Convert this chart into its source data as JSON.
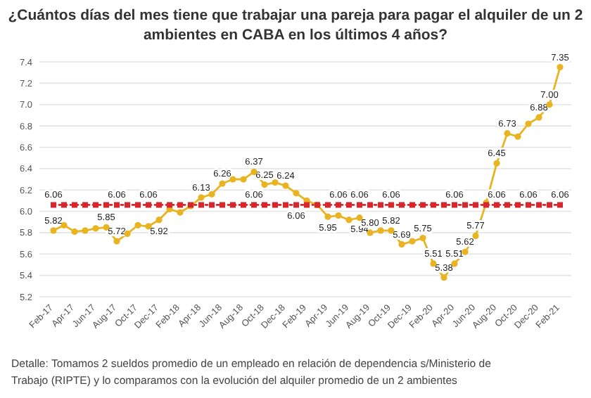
{
  "chart_data": {
    "type": "line",
    "title": "¿Cuántos días del mes tiene que trabajar una pareja para pagar el alquiler de un 2 ambientes en CABA en los últimos 4 años?",
    "categories": [
      "Feb-17",
      null,
      "Apr-17",
      null,
      "Jun-17",
      null,
      "Aug-17",
      null,
      "Oct-17",
      null,
      "Dec-17",
      null,
      "Feb-18",
      null,
      "Apr-18",
      null,
      "Jun-18",
      null,
      "Aug-18",
      null,
      "Oct-18",
      null,
      "Dec-18",
      null,
      "Feb-19",
      null,
      "Apr-19",
      null,
      "Jun-19",
      null,
      "Aug-19",
      null,
      "Oct-19",
      null,
      "Dec-19",
      null,
      "Feb-20",
      null,
      "Apr-20",
      null,
      "Jun-20",
      null,
      "Aug-20",
      null,
      "Oct-20",
      null,
      "Dec-20",
      null,
      "Feb-21"
    ],
    "series": [
      {
        "color": "#e8b422",
        "marker": "circle",
        "line_style": "solid",
        "values": [
          5.82,
          5.87,
          5.81,
          5.82,
          5.84,
          5.85,
          5.72,
          5.79,
          5.87,
          5.86,
          5.92,
          6.02,
          5.99,
          6.05,
          6.13,
          6.16,
          6.26,
          6.3,
          6.3,
          6.37,
          6.25,
          6.27,
          6.24,
          6.17,
          6.1,
          6.06,
          5.95,
          5.96,
          5.92,
          5.94,
          5.8,
          5.82,
          5.82,
          5.69,
          5.72,
          5.75,
          5.51,
          5.38,
          5.51,
          5.62,
          5.77,
          6.08,
          6.45,
          6.73,
          6.7,
          6.82,
          6.88,
          7.0,
          7.35
        ],
        "value_labels": [
          "5.82",
          null,
          null,
          null,
          null,
          "5.85",
          "5.72",
          null,
          null,
          null,
          "5.92",
          null,
          null,
          null,
          "6.13",
          null,
          "6.26",
          null,
          null,
          "6.37",
          "6.25",
          null,
          "6.24",
          null,
          null,
          null,
          "5.95",
          null,
          null,
          "5.94",
          "5.80",
          null,
          "5.82",
          "5.69",
          null,
          "5.75",
          "5.51",
          "5.38",
          "5.51",
          "5.62",
          "5.77",
          null,
          "6.45",
          "6.73",
          null,
          null,
          "6.88",
          "7.00",
          "7.35"
        ]
      },
      {
        "color": "#d7262e",
        "marker": "square",
        "line_style": "dotted",
        "values": [
          6.06,
          6.06,
          6.06,
          6.06,
          6.06,
          6.06,
          6.06,
          6.06,
          6.06,
          6.06,
          6.06,
          6.06,
          6.06,
          6.06,
          6.06,
          6.06,
          6.06,
          6.06,
          6.06,
          6.06,
          6.06,
          6.06,
          6.06,
          6.06,
          6.06,
          6.06,
          6.06,
          6.06,
          6.06,
          6.06,
          6.06,
          6.06,
          6.06,
          6.06,
          6.06,
          6.06,
          6.06,
          6.06,
          6.06,
          6.06,
          6.06,
          6.06,
          6.06,
          6.06,
          6.06,
          6.06,
          6.06,
          6.06,
          6.06
        ],
        "value_labels": [
          "6.06",
          null,
          null,
          null,
          null,
          null,
          "6.06",
          null,
          null,
          "6.06",
          null,
          null,
          null,
          null,
          null,
          null,
          null,
          null,
          null,
          "6.06",
          null,
          null,
          null,
          "6.06",
          null,
          null,
          null,
          "6.06",
          null,
          "6.06",
          null,
          null,
          "6.06",
          null,
          null,
          null,
          null,
          null,
          "6.06",
          null,
          null,
          null,
          "6.06",
          null,
          null,
          "6.06",
          null,
          null,
          "6.06"
        ]
      }
    ],
    "ylim": [
      5.2,
      7.4
    ],
    "yticks": [
      {
        "value": 5.2,
        "label": "5.2"
      },
      {
        "value": 5.4,
        "label": "5.4"
      },
      {
        "value": 5.6,
        "label": "5.6"
      },
      {
        "value": 5.8,
        "label": "5.8"
      },
      {
        "value": 6.0,
        "label": "6.0"
      },
      {
        "value": 6.2,
        "label": "6.2"
      },
      {
        "value": 6.4,
        "label": "6.4"
      },
      {
        "value": 6.6,
        "label": "6.6"
      },
      {
        "value": 6.8,
        "label": "6.8"
      },
      {
        "value": 7.0,
        "label": "7.0"
      },
      {
        "value": 7.2,
        "label": "7.2"
      },
      {
        "value": 7.4,
        "label": "7.4"
      }
    ],
    "grid": "y",
    "annotations": [
      "Detalle: Tomamos 2 sueldos promedio de un empleado en relación de dependencia s/Ministerio de Trabajo (RIPTE) y lo comparamos con la evolución del alquiler promedio de un 2 ambientes"
    ]
  }
}
